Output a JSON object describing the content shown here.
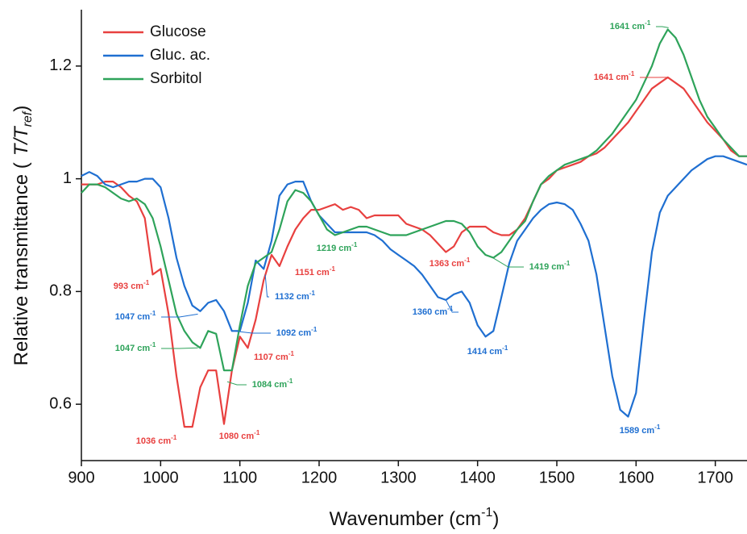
{
  "chart_data": {
    "type": "line",
    "xlabel": [
      "Wavenumber (cm",
      "-1",
      ")"
    ],
    "ylabel": [
      "Relative transmittance (",
      "T/T",
      "ref",
      ")"
    ],
    "xlim": [
      900,
      1740
    ],
    "ylim": [
      0.5,
      1.3
    ],
    "xticks": [
      900,
      1000,
      1100,
      1200,
      1300,
      1400,
      1500,
      1600,
      1700
    ],
    "yticks": [
      0.6,
      0.8,
      1,
      1.2
    ],
    "legend": "upper-left",
    "x": [
      900,
      910,
      920,
      930,
      940,
      950,
      960,
      970,
      980,
      990,
      1000,
      1010,
      1020,
      1030,
      1040,
      1050,
      1060,
      1070,
      1080,
      1090,
      1100,
      1110,
      1120,
      1130,
      1140,
      1150,
      1160,
      1170,
      1180,
      1190,
      1200,
      1210,
      1220,
      1230,
      1240,
      1250,
      1260,
      1270,
      1280,
      1290,
      1300,
      1310,
      1320,
      1330,
      1340,
      1350,
      1360,
      1370,
      1380,
      1390,
      1400,
      1410,
      1420,
      1430,
      1440,
      1450,
      1460,
      1470,
      1480,
      1490,
      1500,
      1510,
      1520,
      1530,
      1540,
      1550,
      1560,
      1570,
      1580,
      1590,
      1600,
      1610,
      1620,
      1630,
      1640,
      1650,
      1660,
      1670,
      1680,
      1690,
      1700,
      1710,
      1720,
      1730,
      1740
    ],
    "series": [
      {
        "name": "Glucose",
        "color": "#e8403f",
        "values": [
          0.99,
          0.99,
          0.99,
          0.995,
          0.995,
          0.985,
          0.97,
          0.96,
          0.93,
          0.83,
          0.84,
          0.76,
          0.65,
          0.56,
          0.56,
          0.63,
          0.66,
          0.66,
          0.565,
          0.66,
          0.72,
          0.7,
          0.75,
          0.82,
          0.865,
          0.845,
          0.88,
          0.91,
          0.93,
          0.945,
          0.945,
          0.95,
          0.955,
          0.945,
          0.95,
          0.945,
          0.93,
          0.935,
          0.935,
          0.935,
          0.935,
          0.92,
          0.915,
          0.91,
          0.9,
          0.885,
          0.87,
          0.88,
          0.905,
          0.915,
          0.915,
          0.915,
          0.905,
          0.9,
          0.9,
          0.91,
          0.93,
          0.96,
          0.99,
          1.0,
          1.015,
          1.02,
          1.025,
          1.03,
          1.04,
          1.045,
          1.055,
          1.07,
          1.085,
          1.1,
          1.12,
          1.14,
          1.16,
          1.17,
          1.18,
          1.17,
          1.16,
          1.14,
          1.12,
          1.1,
          1.085,
          1.07,
          1.05,
          1.04,
          1.04
        ]
      },
      {
        "name": "Gluc. ac.",
        "color": "#1f6fd1",
        "values": [
          1.005,
          1.012,
          1.005,
          0.99,
          0.985,
          0.99,
          0.995,
          0.995,
          1.0,
          1.0,
          0.985,
          0.93,
          0.86,
          0.81,
          0.775,
          0.765,
          0.78,
          0.785,
          0.765,
          0.73,
          0.73,
          0.78,
          0.855,
          0.84,
          0.89,
          0.97,
          0.99,
          0.995,
          0.995,
          0.96,
          0.935,
          0.92,
          0.905,
          0.905,
          0.905,
          0.905,
          0.905,
          0.9,
          0.89,
          0.875,
          0.865,
          0.855,
          0.845,
          0.83,
          0.81,
          0.79,
          0.785,
          0.795,
          0.8,
          0.78,
          0.74,
          0.72,
          0.73,
          0.79,
          0.85,
          0.89,
          0.91,
          0.93,
          0.945,
          0.955,
          0.958,
          0.955,
          0.945,
          0.92,
          0.89,
          0.83,
          0.74,
          0.65,
          0.59,
          0.578,
          0.62,
          0.75,
          0.87,
          0.94,
          0.97,
          0.985,
          1.0,
          1.015,
          1.025,
          1.035,
          1.04,
          1.04,
          1.035,
          1.03,
          1.025
        ]
      },
      {
        "name": "Sorbitol",
        "color": "#2ea35a",
        "values": [
          0.975,
          0.99,
          0.99,
          0.985,
          0.975,
          0.965,
          0.96,
          0.965,
          0.955,
          0.93,
          0.88,
          0.82,
          0.76,
          0.73,
          0.71,
          0.7,
          0.73,
          0.725,
          0.66,
          0.66,
          0.74,
          0.81,
          0.85,
          0.86,
          0.87,
          0.91,
          0.96,
          0.98,
          0.975,
          0.96,
          0.935,
          0.91,
          0.9,
          0.905,
          0.91,
          0.915,
          0.915,
          0.91,
          0.905,
          0.9,
          0.9,
          0.9,
          0.905,
          0.91,
          0.915,
          0.92,
          0.925,
          0.925,
          0.92,
          0.905,
          0.88,
          0.865,
          0.86,
          0.87,
          0.89,
          0.91,
          0.925,
          0.96,
          0.99,
          1.005,
          1.015,
          1.025,
          1.03,
          1.035,
          1.04,
          1.05,
          1.065,
          1.08,
          1.1,
          1.12,
          1.14,
          1.17,
          1.2,
          1.24,
          1.265,
          1.25,
          1.22,
          1.18,
          1.14,
          1.11,
          1.09,
          1.07,
          1.055,
          1.04,
          1.04
        ]
      }
    ],
    "annotations": [
      {
        "text": "993 cm",
        "sup": "-1",
        "x": 993,
        "y": 0.83,
        "color": "#e8403f"
      },
      {
        "text": "1047 cm",
        "sup": "-1",
        "x": 1047,
        "y": 0.76,
        "color": "#1f6fd1"
      },
      {
        "text": "1047 cm",
        "sup": "-1",
        "x": 1047,
        "y": 0.7,
        "color": "#2ea35a"
      },
      {
        "text": "1036 cm",
        "sup": "-1",
        "x": 1036,
        "y": 0.545,
        "color": "#e8403f"
      },
      {
        "text": "1080 cm",
        "sup": "-1",
        "x": 1080,
        "y": 0.565,
        "color": "#e8403f"
      },
      {
        "text": "1107 cm",
        "sup": "-1",
        "x": 1107,
        "y": 0.69,
        "color": "#e8403f"
      },
      {
        "text": "1092 cm",
        "sup": "-1",
        "x": 1092,
        "y": 0.73,
        "color": "#1f6fd1"
      },
      {
        "text": "1084 cm",
        "sup": "-1",
        "x": 1084,
        "y": 0.64,
        "color": "#2ea35a"
      },
      {
        "text": "1132 cm",
        "sup": "-1",
        "x": 1132,
        "y": 0.83,
        "color": "#1f6fd1"
      },
      {
        "text": "1151 cm",
        "sup": "-1",
        "x": 1151,
        "y": 0.845,
        "color": "#e8403f"
      },
      {
        "text": "1219 cm",
        "sup": "-1",
        "x": 1219,
        "y": 0.9,
        "color": "#2ea35a"
      },
      {
        "text": "1360 cm",
        "sup": "-1",
        "x": 1360,
        "y": 0.785,
        "color": "#1f6fd1"
      },
      {
        "text": "1363 cm",
        "sup": "-1",
        "x": 1363,
        "y": 0.87,
        "color": "#e8403f"
      },
      {
        "text": "1414 cm",
        "sup": "-1",
        "x": 1414,
        "y": 0.72,
        "color": "#1f6fd1"
      },
      {
        "text": "1419 cm",
        "sup": "-1",
        "x": 1419,
        "y": 0.86,
        "color": "#2ea35a"
      },
      {
        "text": "1589 cm",
        "sup": "-1",
        "x": 1589,
        "y": 0.578,
        "color": "#1f6fd1"
      },
      {
        "text": "1641 cm",
        "sup": "-1",
        "x": 1641,
        "y": 1.18,
        "color": "#e8403f"
      },
      {
        "text": "1641 cm",
        "sup": "-1",
        "x": 1641,
        "y": 1.268,
        "color": "#2ea35a"
      }
    ]
  }
}
